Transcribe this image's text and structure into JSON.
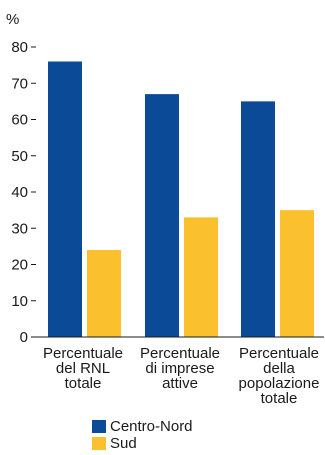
{
  "chart_data": {
    "type": "bar",
    "ylabel": "%",
    "ylim": [
      0,
      80
    ],
    "yticks": [
      0,
      10,
      20,
      30,
      40,
      50,
      60,
      70,
      80
    ],
    "categories": [
      [
        "Percentuale",
        "del RNL",
        "totale"
      ],
      [
        "Percentuale",
        "di imprese",
        "attive"
      ],
      [
        "Percentuale",
        "della",
        "popolazione",
        "totale"
      ]
    ],
    "series": [
      {
        "name": "Centro-Nord",
        "color": "#0a4a96",
        "values": [
          76,
          67,
          65
        ]
      },
      {
        "name": "Sud",
        "color": "#fbc02d",
        "values": [
          24,
          33,
          35
        ]
      }
    ],
    "legend": "bottom",
    "grid": false
  }
}
